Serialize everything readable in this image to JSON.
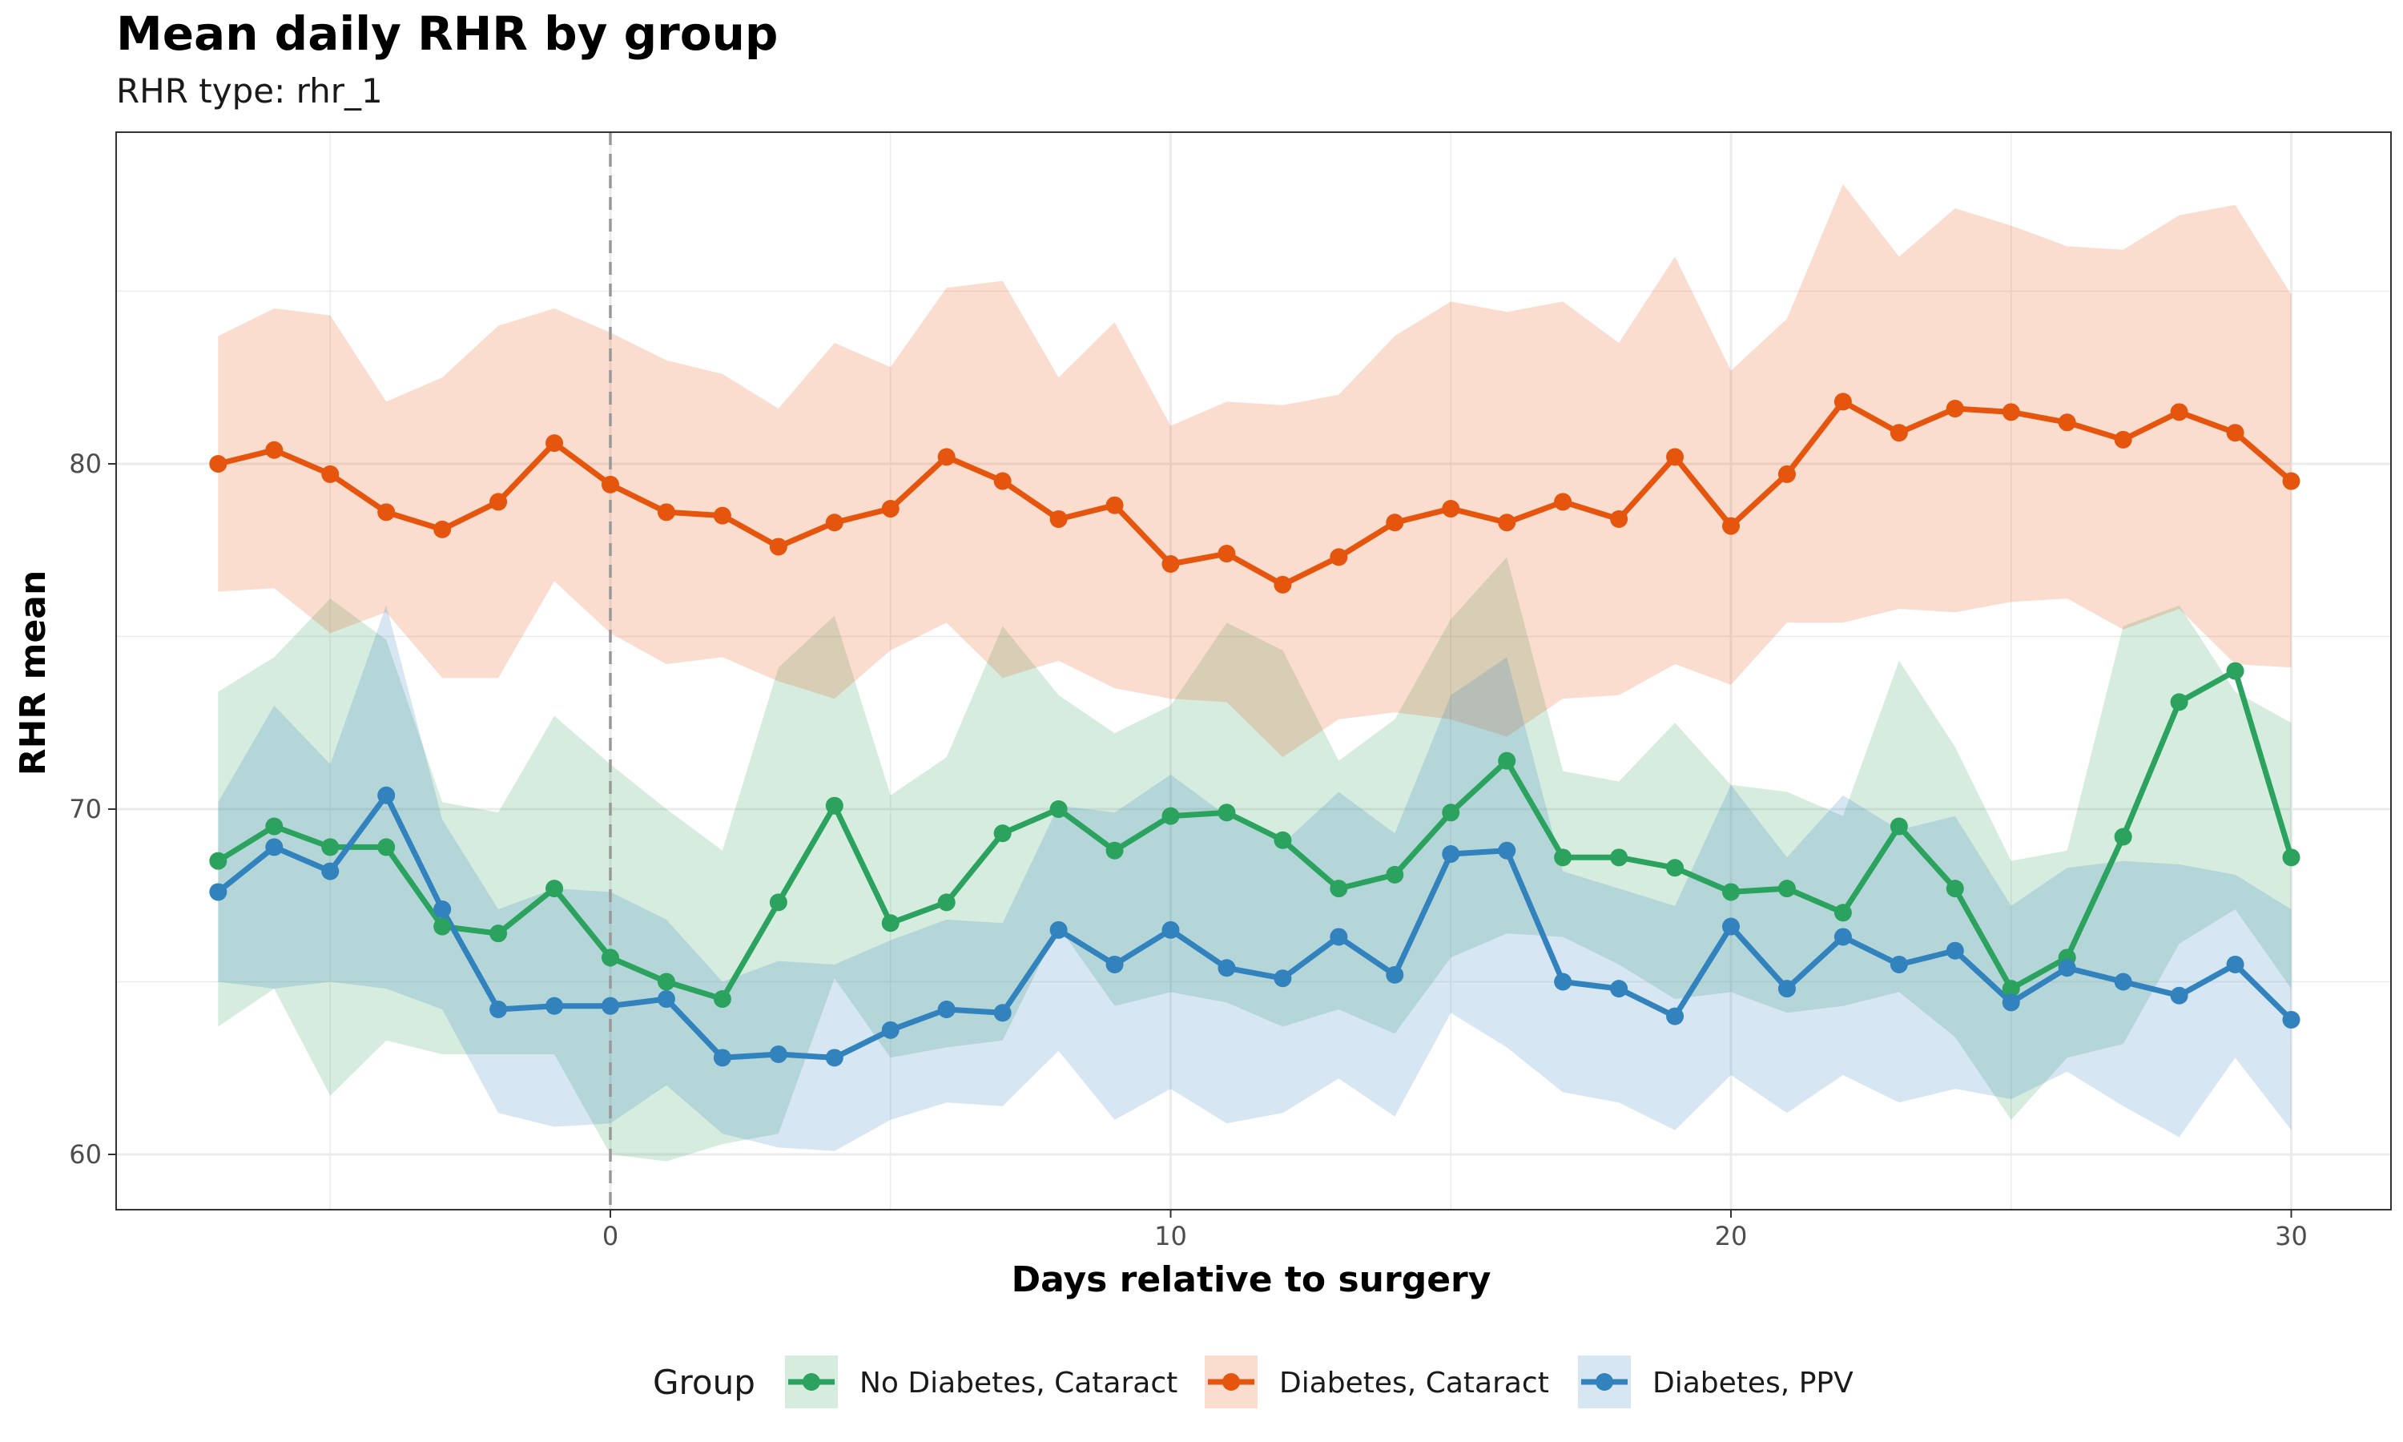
{
  "chart_data": {
    "type": "line",
    "title": "Mean daily RHR by group",
    "subtitle": "RHR type: rhr_1",
    "xlabel": "Days relative to surgery",
    "ylabel": "RHR mean",
    "xlim": [
      -7,
      30
    ],
    "ylim": [
      60,
      89
    ],
    "x_ticks": [
      0,
      10,
      20,
      30
    ],
    "y_ticks": [
      60,
      70,
      80
    ],
    "grid": true,
    "reference_line_x": 0,
    "legend_title": "Group",
    "legend_position": "bottom",
    "x": [
      -7,
      -6,
      -5,
      -4,
      -3,
      -2,
      -1,
      0,
      1,
      2,
      3,
      4,
      5,
      6,
      7,
      8,
      9,
      10,
      11,
      12,
      13,
      14,
      15,
      16,
      17,
      18,
      19,
      20,
      21,
      22,
      23,
      24,
      25,
      26,
      27,
      28,
      29,
      30
    ],
    "series": [
      {
        "name": "No Diabetes, Cataract",
        "color": "#2ca25f",
        "values": [
          68.5,
          69.5,
          68.9,
          68.9,
          66.6,
          66.4,
          67.7,
          65.7,
          65.0,
          64.5,
          67.3,
          70.1,
          66.7,
          67.3,
          69.3,
          70.0,
          68.8,
          69.8,
          69.9,
          69.1,
          67.7,
          68.1,
          69.9,
          71.4,
          68.6,
          68.6,
          68.3,
          67.6,
          67.7,
          67.0,
          69.5,
          67.7,
          64.8,
          65.7,
          69.2,
          73.1,
          74.0,
          68.6
        ],
        "lower": [
          63.7,
          64.8,
          61.7,
          63.3,
          62.9,
          62.9,
          62.9,
          60.0,
          59.8,
          60.3,
          60.6,
          65.1,
          62.8,
          63.1,
          63.3,
          66.6,
          64.3,
          64.7,
          64.4,
          63.7,
          64.2,
          63.5,
          65.7,
          66.4,
          66.3,
          65.5,
          64.5,
          64.7,
          64.1,
          64.3,
          64.7,
          63.4,
          61.0,
          62.8,
          63.2,
          66.1,
          67.1,
          64.8
        ],
        "upper": [
          73.4,
          74.4,
          76.1,
          74.9,
          70.2,
          69.9,
          72.7,
          71.3,
          70.0,
          68.8,
          74.1,
          75.6,
          70.4,
          71.5,
          75.3,
          73.3,
          72.2,
          73.0,
          75.4,
          74.6,
          71.4,
          72.6,
          75.5,
          77.3,
          71.1,
          70.8,
          72.5,
          70.7,
          70.5,
          69.8,
          74.3,
          71.8,
          68.5,
          68.8,
          75.3,
          75.9,
          73.4,
          72.5
        ]
      },
      {
        "name": "Diabetes, Cataract",
        "color": "#e6550d",
        "values": [
          80.0,
          80.4,
          79.7,
          78.6,
          78.1,
          78.9,
          80.6,
          79.4,
          78.6,
          78.5,
          77.6,
          78.3,
          78.7,
          80.2,
          79.5,
          78.4,
          78.8,
          77.1,
          77.4,
          76.5,
          77.3,
          78.3,
          78.7,
          78.3,
          78.9,
          78.4,
          80.2,
          78.2,
          79.7,
          81.8,
          80.9,
          81.6,
          81.5,
          81.2,
          80.7,
          81.5,
          80.9,
          79.5
        ],
        "lower": [
          76.3,
          76.4,
          75.1,
          75.7,
          73.8,
          73.8,
          76.6,
          75.1,
          74.2,
          74.4,
          73.7,
          73.2,
          74.6,
          75.4,
          73.8,
          74.3,
          73.5,
          73.2,
          73.1,
          71.5,
          72.6,
          72.8,
          72.6,
          72.1,
          73.2,
          73.3,
          74.2,
          73.6,
          75.4,
          75.4,
          75.8,
          75.7,
          76.0,
          76.1,
          75.2,
          75.8,
          74.2,
          74.1
        ],
        "upper": [
          83.7,
          84.5,
          84.3,
          81.8,
          82.5,
          84.0,
          84.5,
          83.8,
          83.0,
          82.6,
          81.6,
          83.5,
          82.8,
          85.1,
          85.3,
          82.5,
          84.1,
          81.1,
          81.8,
          81.7,
          82.0,
          83.7,
          84.7,
          84.4,
          84.7,
          83.5,
          86.0,
          82.7,
          84.2,
          88.1,
          86.0,
          87.4,
          86.9,
          86.3,
          86.2,
          87.2,
          87.5,
          84.9
        ]
      },
      {
        "name": "Diabetes, PPV",
        "color": "#3182bd",
        "values": [
          67.6,
          68.9,
          68.2,
          70.4,
          67.1,
          64.2,
          64.3,
          64.3,
          64.5,
          62.8,
          62.9,
          62.8,
          63.6,
          64.2,
          64.1,
          66.5,
          65.5,
          66.5,
          65.4,
          65.1,
          66.3,
          65.2,
          68.7,
          68.8,
          65.0,
          64.8,
          64.0,
          66.6,
          64.8,
          66.3,
          65.5,
          65.9,
          64.4,
          65.4,
          65.0,
          64.6,
          65.5,
          63.9
        ],
        "lower": [
          65.0,
          64.8,
          65.0,
          64.8,
          64.2,
          61.2,
          60.8,
          60.9,
          62.0,
          60.6,
          60.2,
          60.1,
          61.0,
          61.5,
          61.4,
          63.0,
          61.0,
          61.9,
          60.9,
          61.2,
          62.2,
          61.1,
          64.1,
          63.1,
          61.8,
          61.5,
          60.7,
          62.3,
          61.2,
          62.3,
          61.5,
          61.9,
          61.6,
          62.4,
          61.4,
          60.5,
          62.8,
          60.7
        ],
        "upper": [
          70.2,
          73.0,
          71.3,
          75.9,
          69.7,
          67.1,
          67.7,
          67.6,
          66.8,
          65.0,
          65.6,
          65.5,
          66.2,
          66.8,
          66.7,
          70.1,
          69.9,
          71.0,
          69.8,
          69.0,
          70.5,
          69.3,
          73.3,
          74.4,
          68.2,
          67.7,
          67.2,
          70.7,
          68.6,
          70.4,
          69.4,
          69.8,
          67.2,
          68.3,
          68.5,
          68.4,
          68.1,
          67.1
        ]
      }
    ]
  }
}
